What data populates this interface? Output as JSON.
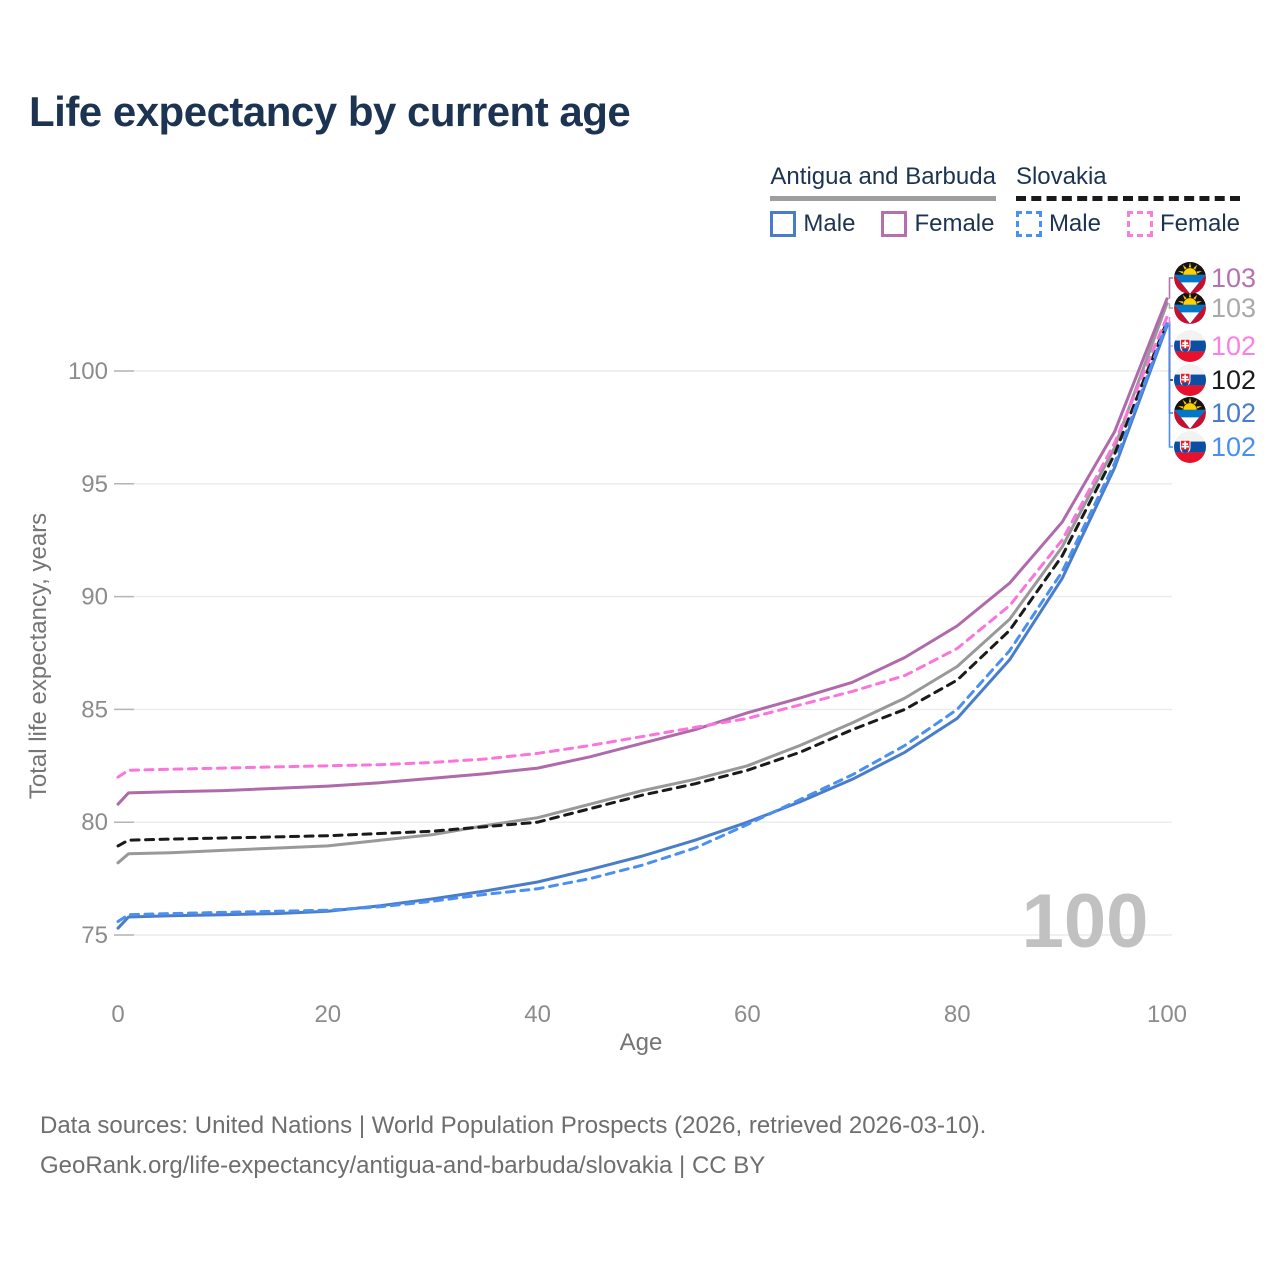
{
  "title": "Life expectancy by current age",
  "legend": {
    "groups": [
      {
        "label": "Antigua and Barbuda",
        "line_style": "solid",
        "line_color": "#9e9e9e",
        "items": [
          {
            "label": "Male",
            "color": "#4a7dc9",
            "dashed": false
          },
          {
            "label": "Female",
            "color": "#b470ae",
            "dashed": false
          }
        ]
      },
      {
        "label": "Slovakia",
        "line_style": "dashed",
        "line_color": "#1a1a1a",
        "items": [
          {
            "label": "Male",
            "color": "#4a8ff2",
            "dashed": true
          },
          {
            "label": "Female",
            "color": "#fb7ce0",
            "dashed": true
          }
        ]
      }
    ]
  },
  "chart_data": {
    "type": "line",
    "title": "Life expectancy by current age",
    "xlabel": "Age",
    "ylabel": "Total life expectancy, years",
    "xticks": [
      0,
      20,
      40,
      60,
      80,
      100
    ],
    "yticks": [
      75,
      80,
      85,
      90,
      95,
      100
    ],
    "xlim": [
      0,
      100
    ],
    "ylim": [
      74.5,
      104
    ],
    "grid": "horizontal",
    "watermark": "100",
    "x": [
      0,
      1,
      5,
      10,
      15,
      20,
      25,
      30,
      35,
      40,
      45,
      50,
      55,
      60,
      65,
      70,
      75,
      80,
      85,
      90,
      95,
      100
    ],
    "series": [
      {
        "name": "Antigua and Barbuda — Both sexes",
        "country": "Antigua and Barbuda",
        "sex": "both",
        "color": "#999999",
        "dashed": false,
        "values": [
          78.2,
          78.6,
          78.65,
          78.75,
          78.85,
          78.95,
          79.2,
          79.45,
          79.85,
          80.2,
          80.8,
          81.4,
          81.9,
          82.5,
          83.4,
          84.4,
          85.5,
          86.9,
          89.0,
          92.2,
          96.6,
          103.0
        ],
        "end_label": {
          "value": "103",
          "color": "#a9a9a9",
          "flag": "antigua-and-barbuda",
          "slot": 1
        }
      },
      {
        "name": "Antigua and Barbuda — Female",
        "country": "Antigua and Barbuda",
        "sex": "female",
        "color": "#b06aac",
        "dashed": false,
        "values": [
          80.8,
          81.3,
          81.35,
          81.4,
          81.5,
          81.6,
          81.75,
          81.95,
          82.15,
          82.4,
          82.9,
          83.5,
          84.1,
          84.85,
          85.5,
          86.2,
          87.3,
          88.7,
          90.6,
          93.3,
          97.3,
          103.2
        ],
        "end_label": {
          "value": "103",
          "color": "#b473ae",
          "flag": "antigua-and-barbuda",
          "slot": 0
        }
      },
      {
        "name": "Antigua and Barbuda — Male",
        "country": "Antigua and Barbuda",
        "sex": "male",
        "color": "#4a7dc9",
        "dashed": false,
        "values": [
          75.3,
          75.8,
          75.85,
          75.9,
          75.95,
          76.05,
          76.3,
          76.6,
          76.95,
          77.35,
          77.9,
          78.5,
          79.2,
          80.0,
          80.9,
          81.9,
          83.1,
          84.6,
          87.2,
          90.8,
          95.7,
          102.0
        ],
        "end_label": {
          "value": "102",
          "color": "#4a7dc9",
          "flag": "antigua-and-barbuda",
          "slot": 4
        }
      },
      {
        "name": "Slovakia — Both sexes",
        "country": "Slovakia",
        "sex": "both",
        "color": "#1a1a1a",
        "dashed": true,
        "values": [
          78.95,
          79.2,
          79.25,
          79.3,
          79.35,
          79.4,
          79.5,
          79.6,
          79.8,
          80.0,
          80.6,
          81.2,
          81.7,
          82.3,
          83.1,
          84.1,
          85.0,
          86.3,
          88.5,
          91.8,
          96.3,
          102.2
        ],
        "end_label": {
          "value": "102",
          "color": "#1c1c1c",
          "flag": "slovakia",
          "slot": 3
        }
      },
      {
        "name": "Slovakia — Female",
        "country": "Slovakia",
        "sex": "female",
        "color": "#fb74dc",
        "dashed": true,
        "values": [
          82.0,
          82.3,
          82.35,
          82.4,
          82.45,
          82.5,
          82.55,
          82.65,
          82.8,
          83.05,
          83.4,
          83.8,
          84.2,
          84.6,
          85.2,
          85.8,
          86.5,
          87.7,
          89.6,
          92.5,
          96.8,
          102.4
        ],
        "end_label": {
          "value": "102",
          "color": "#fc7fe3",
          "flag": "slovakia",
          "slot": 2
        }
      },
      {
        "name": "Slovakia — Male",
        "country": "Slovakia",
        "sex": "male",
        "color": "#4a8ff2",
        "dashed": true,
        "values": [
          75.6,
          75.9,
          75.95,
          76.0,
          76.05,
          76.1,
          76.25,
          76.5,
          76.8,
          77.05,
          77.5,
          78.1,
          78.85,
          79.9,
          81.0,
          82.1,
          83.4,
          85.0,
          87.6,
          91.1,
          95.9,
          102.1
        ],
        "end_label": {
          "value": "102",
          "color": "#4a8ef2",
          "flag": "slovakia",
          "slot": 5
        }
      }
    ]
  },
  "footer": {
    "line1": "Data sources: United Nations | World Population Prospects (2026, retrieved 2026-03-10).",
    "line2": "GeoRank.org/life-expectancy/antigua-and-barbuda/slovakia | CC BY"
  }
}
